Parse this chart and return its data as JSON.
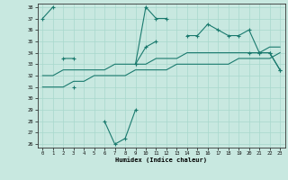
{
  "x_all": [
    0,
    1,
    2,
    3,
    4,
    5,
    6,
    7,
    8,
    9,
    10,
    11,
    12,
    13,
    14,
    15,
    16,
    17,
    18,
    19,
    20,
    21,
    22,
    23
  ],
  "line_top": [
    37,
    38,
    null,
    null,
    null,
    null,
    null,
    null,
    null,
    33,
    38,
    37,
    37,
    null,
    35.5,
    35.5,
    36.5,
    36,
    35.5,
    35.5,
    36,
    34,
    34,
    32.5
  ],
  "line_mid": [
    null,
    null,
    33.5,
    33.5,
    null,
    null,
    null,
    null,
    null,
    33,
    34.5,
    35,
    null,
    null,
    null,
    null,
    null,
    null,
    null,
    null,
    34,
    34,
    34,
    32.5
  ],
  "line_bot": [
    null,
    null,
    null,
    31,
    null,
    null,
    28,
    26,
    26.5,
    29,
    null,
    null,
    null,
    null,
    null,
    null,
    null,
    null,
    null,
    null,
    null,
    null,
    null,
    null
  ],
  "line_str1": [
    32,
    32,
    32.5,
    32.5,
    32.5,
    32.5,
    32.5,
    33,
    33,
    33,
    33,
    33.5,
    33.5,
    33.5,
    34,
    34,
    34,
    34,
    34,
    34,
    34,
    34,
    34.5,
    34.5
  ],
  "line_str2": [
    31,
    31,
    31,
    31.5,
    31.5,
    32,
    32,
    32,
    32,
    32.5,
    32.5,
    32.5,
    32.5,
    33,
    33,
    33,
    33,
    33,
    33,
    33.5,
    33.5,
    33.5,
    33.5,
    34
  ],
  "bg_color": "#c8e8e0",
  "line_color": "#1a7a6e",
  "grid_color": "#a8d8cc",
  "xlabel": "Humidex (Indice chaleur)",
  "ylim": [
    26,
    38
  ],
  "xlim": [
    -0.5,
    23.5
  ],
  "yticks": [
    26,
    27,
    28,
    29,
    30,
    31,
    32,
    33,
    34,
    35,
    36,
    37,
    38
  ],
  "xticks": [
    0,
    1,
    2,
    3,
    4,
    5,
    6,
    7,
    8,
    9,
    10,
    11,
    12,
    13,
    14,
    15,
    16,
    17,
    18,
    19,
    20,
    21,
    22,
    23
  ]
}
